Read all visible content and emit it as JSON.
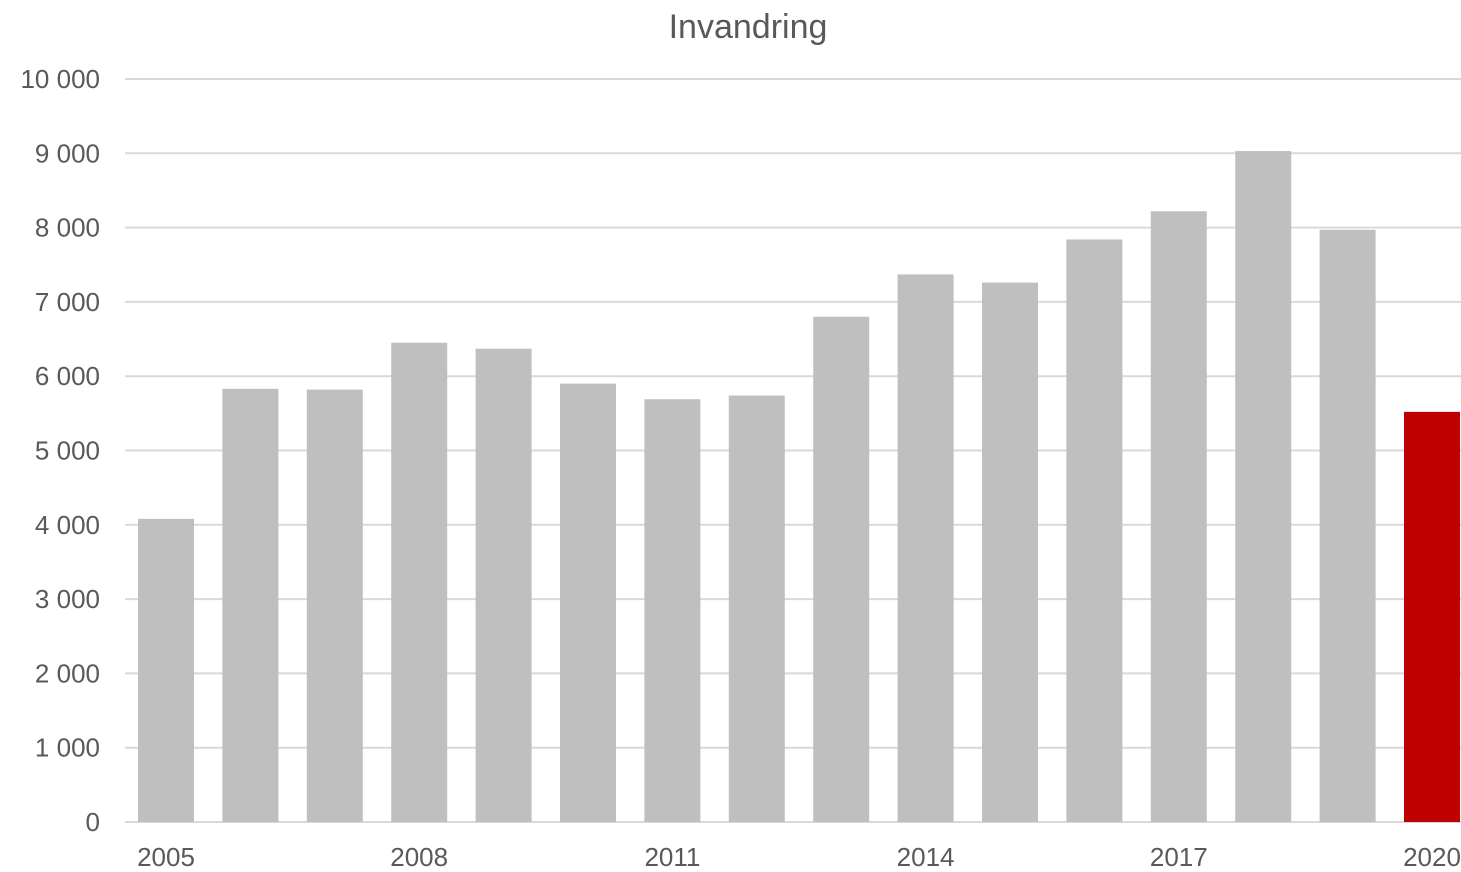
{
  "chart_data": {
    "type": "bar",
    "title": "Invandring",
    "xlabel": "",
    "ylabel": "",
    "categories": [
      "2005",
      "2006",
      "2007",
      "2008",
      "2009",
      "2010",
      "2011",
      "2012",
      "2013",
      "2014",
      "2015",
      "2016",
      "2017",
      "2018",
      "2019",
      "2020"
    ],
    "x_tick_labels": [
      "2005",
      "2008",
      "2011",
      "2014",
      "2017",
      "2020"
    ],
    "values": [
      4080,
      5830,
      5820,
      6450,
      6370,
      5900,
      5690,
      5740,
      6800,
      7370,
      7260,
      7840,
      8220,
      9030,
      7970,
      5520
    ],
    "ylim": [
      0,
      10000
    ],
    "y_ticks": [
      0,
      1000,
      2000,
      3000,
      4000,
      5000,
      6000,
      7000,
      8000,
      9000,
      10000
    ],
    "y_tick_labels": [
      "0",
      "1 000",
      "2 000",
      "3 000",
      "4 000",
      "5 000",
      "6 000",
      "7 000",
      "8 000",
      "9 000",
      "10 000"
    ],
    "grid": true,
    "legend": "none",
    "colors": {
      "bar": "#bfbfbf",
      "highlight": "#c00000",
      "grid": "#d9d9d9",
      "text": "#595959"
    },
    "highlight_category": "2020"
  }
}
